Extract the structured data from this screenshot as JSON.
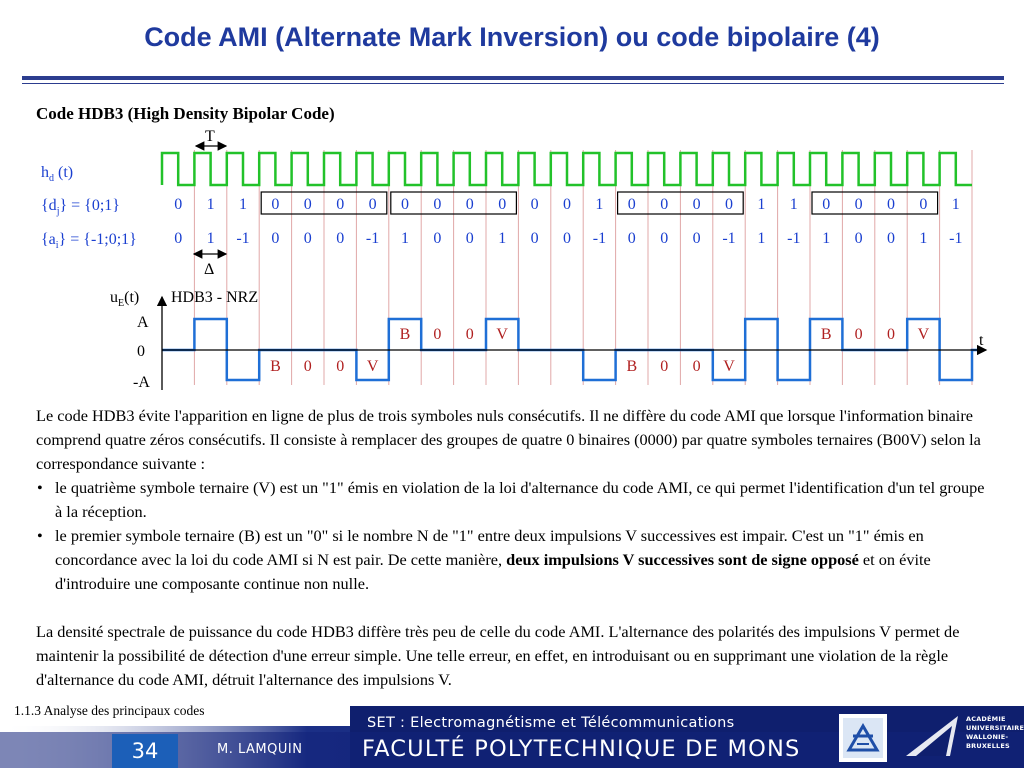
{
  "title": "Code AMI (Alternate Mark Inversion) ou code bipolaire (4)",
  "subtitle": "Code HDB3 (High Density Bipolar Code)",
  "diagram": {
    "clock_label": "h",
    "clock_sub": "d",
    "clock_suffix": " (t)",
    "period_label": "T",
    "delta_label": "Δ",
    "d_label_pre": "{d",
    "d_label_sub": "j",
    "d_label_post": "} = {0;1}",
    "a_label_pre": "{a",
    "a_label_sub": "i",
    "a_label_post": "} = {-1;0;1}",
    "d_values": [
      "0",
      "1",
      "1",
      "0",
      "0",
      "0",
      "0",
      "0",
      "0",
      "0",
      "0",
      "0",
      "0",
      "1",
      "0",
      "0",
      "0",
      "0",
      "1",
      "1",
      "0",
      "0",
      "0",
      "0",
      "1"
    ],
    "a_values": [
      "0",
      "1",
      "-1",
      "0",
      "0",
      "0",
      "-1",
      "1",
      "0",
      "0",
      "1",
      "0",
      "0",
      "-1",
      "0",
      "0",
      "0",
      "-1",
      "1",
      "-1",
      "1",
      "0",
      "0",
      "1",
      "-1"
    ],
    "boxed_groups": [
      [
        3,
        6
      ],
      [
        7,
        10
      ],
      [
        14,
        17
      ],
      [
        20,
        23
      ]
    ],
    "signal_title_pre": "u",
    "signal_title_sub": "E",
    "signal_title_post": "(t)",
    "signal_name": "HDB3 - NRZ",
    "y_labels": {
      "high": "A",
      "zero": "0",
      "low": "-A"
    },
    "time_label": "t",
    "signal_levels": [
      0,
      1,
      -1,
      0,
      0,
      0,
      -1,
      1,
      0,
      0,
      1,
      0,
      0,
      -1,
      0,
      0,
      0,
      -1,
      1,
      -1,
      1,
      0,
      0,
      1,
      -1
    ],
    "annotations": [
      {
        "bit": 3,
        "text": "B",
        "level": -1
      },
      {
        "bit": 4,
        "text": "0",
        "level": -1
      },
      {
        "bit": 5,
        "text": "0",
        "level": -1
      },
      {
        "bit": 6,
        "text": "V",
        "level": -1
      },
      {
        "bit": 7,
        "text": "B",
        "level": 1
      },
      {
        "bit": 8,
        "text": "0",
        "level": 1
      },
      {
        "bit": 9,
        "text": "0",
        "level": 1
      },
      {
        "bit": 10,
        "text": "V",
        "level": 1
      },
      {
        "bit": 14,
        "text": "B",
        "level": -1
      },
      {
        "bit": 15,
        "text": "0",
        "level": -1
      },
      {
        "bit": 16,
        "text": "0",
        "level": -1
      },
      {
        "bit": 17,
        "text": "V",
        "level": -1
      },
      {
        "bit": 20,
        "text": "B",
        "level": 1
      },
      {
        "bit": 21,
        "text": "0",
        "level": 1
      },
      {
        "bit": 22,
        "text": "0",
        "level": 1
      },
      {
        "bit": 23,
        "text": "V",
        "level": 1
      }
    ],
    "colors": {
      "clock": "#22c22a",
      "data": "#1a3fd0",
      "signal": "#1f6fd6",
      "annotation": "#b02020",
      "gridline": "#e0a8a8"
    }
  },
  "body": {
    "para1": "Le code HDB3 évite l'apparition en ligne de plus de trois symboles nuls consécutifs.  Il ne diffère du code AMI que lorsque l'information binaire comprend quatre zéros consécutifs. Il consiste à remplacer des groupes de quatre 0 binaires (0000) par quatre symboles ternaires (B00V) selon la correspondance suivante :",
    "bullet1": "le quatrième symbole ternaire (V) est un \"1\" émis en violation de la loi d'alternance du code AMI, ce qui permet l'identification d'un tel groupe à la réception.",
    "bullet2_part1": "le premier symbole ternaire (B) est un \"0\" si le nombre N de \"1\" entre deux impulsions V successives est impair.  C'est un \"1\" émis en concordance avec la loi du code AMI si N est pair.  De cette manière, ",
    "bullet2_bold": "deux impulsions V successives sont de signe opposé",
    "bullet2_part2": " et on évite d'introduire une composante continue non nulle.",
    "para2": "La densité spectrale de puissance du code HDB3 diffère très peu de celle du code AMI.  L'alternance des polarités des impulsions V permet de maintenir la possibilité de détection d'une erreur simple. Une telle erreur, en effet, en introduisant ou en supprimant une violation de la règle d'alternance du code AMI, détruit l'alternance des impulsions V."
  },
  "footer": {
    "section_ref": "1.1.3  Analyse des principaux codes",
    "course": "SET : Electromagnétisme et Télécommunications",
    "page_number": "34",
    "author": "M. LAMQUIN",
    "faculty": "FACULTÉ POLYTECHNIQUE DE MONS",
    "academy_lines": [
      "ACADÉMIE",
      "UNIVERSITAIRE",
      "WALLONIE-",
      "BRUXELLES"
    ],
    "colors": {
      "bar": "#0f1f6e",
      "page_box": "#1c5fb8"
    }
  }
}
